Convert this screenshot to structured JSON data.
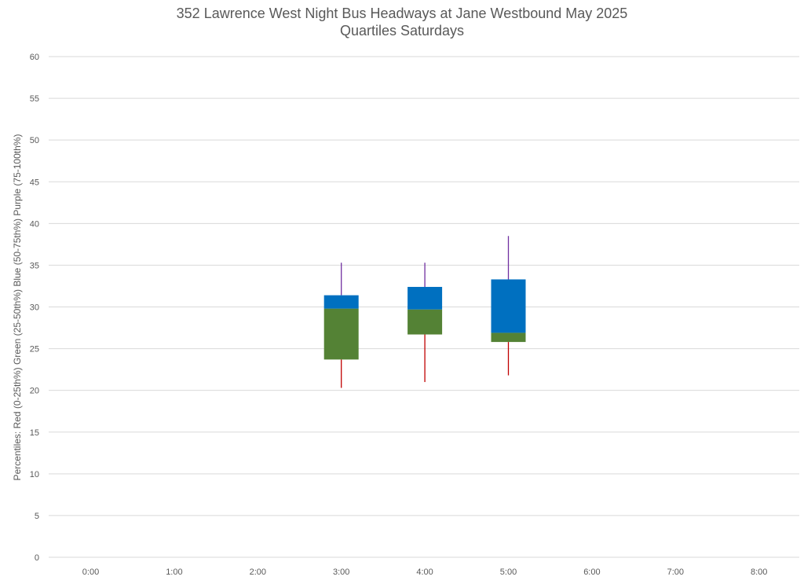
{
  "chart_data": {
    "type": "box",
    "title": "352 Lawrence West Night Bus Headways at Jane Westbound May 2025",
    "subtitle": "Quartiles Saturdays",
    "ylabel": "Percentiles:  Red (0-25th%)  Green (25-50th%)  Blue (50-75th%)  Purple (75-100th%)",
    "xlabel": "",
    "categories": [
      "0:00",
      "1:00",
      "2:00",
      "3:00",
      "4:00",
      "5:00",
      "6:00",
      "7:00",
      "8:00"
    ],
    "ylim": [
      0,
      60
    ],
    "yticks": [
      0,
      5,
      10,
      15,
      20,
      25,
      30,
      35,
      40,
      45,
      50,
      55,
      60
    ],
    "grid": true,
    "boxes": [
      {
        "category": "3:00",
        "min": 20.3,
        "q1": 23.7,
        "median": 29.8,
        "q3": 31.4,
        "max": 35.3
      },
      {
        "category": "4:00",
        "min": 21.0,
        "q1": 26.7,
        "median": 29.7,
        "q3": 32.4,
        "max": 35.3
      },
      {
        "category": "5:00",
        "min": 21.8,
        "q1": 25.8,
        "median": 26.9,
        "q3": 33.3,
        "max": 38.5
      }
    ],
    "colors": {
      "q1_whisker": "#c00000",
      "q1_median_box": "#548235",
      "median_q3_box": "#0070c0",
      "q4_whisker": "#7030a0",
      "grid": "#d9d9d9",
      "text": "#595959"
    }
  }
}
